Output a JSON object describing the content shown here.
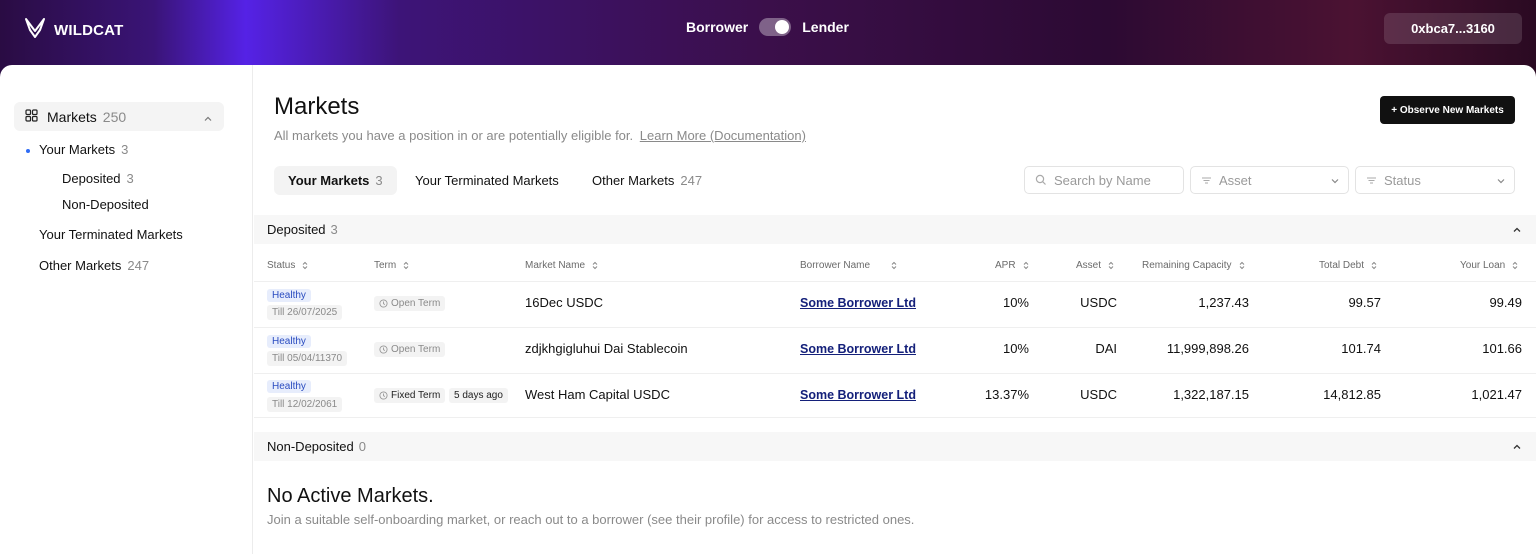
{
  "header": {
    "logo_text": "WILDCAT",
    "role_left": "Borrower",
    "role_right": "Lender",
    "wallet": "0xbca7...3160"
  },
  "sidebar": {
    "markets_label": "Markets",
    "markets_count": "250",
    "your_markets_label": "Your Markets",
    "your_markets_count": "3",
    "deposited_label": "Deposited",
    "deposited_count": "3",
    "non_deposited_label": "Non-Deposited",
    "terminated_label": "Your Terminated Markets",
    "other_label": "Other Markets",
    "other_count": "247"
  },
  "main": {
    "title": "Markets",
    "subtitle": "All markets you have a position in or are potentially eligible for.",
    "learn_more": "Learn More (Documentation)",
    "observe_button": "+ Observe New Markets",
    "tabs": [
      {
        "label": "Your Markets",
        "count": "3"
      },
      {
        "label": "Your Terminated Markets",
        "count": ""
      },
      {
        "label": "Other Markets",
        "count": "247"
      }
    ],
    "search_placeholder": "Search by Name",
    "asset_filter": "Asset",
    "status_filter": "Status"
  },
  "deposited": {
    "label": "Deposited",
    "count": "3",
    "columns": [
      "Status",
      "Term",
      "Market Name",
      "Borrower Name",
      "APR",
      "Asset",
      "Remaining Capacity",
      "Total Debt",
      "Your Loan"
    ],
    "rows": [
      {
        "status": "Healthy",
        "till": "Till 26/07/2025",
        "term": "Open Term",
        "term_extra": "",
        "market": "16Dec USDC",
        "borrower": "Some Borrower Ltd",
        "apr": "10%",
        "asset": "USDC",
        "capacity": "1,237.43",
        "debt": "99.57",
        "loan": "99.49"
      },
      {
        "status": "Healthy",
        "till": "Till 05/04/11370",
        "term": "Open Term",
        "term_extra": "",
        "market": "zdjkhgigluhui Dai Stablecoin",
        "borrower": "Some Borrower Ltd",
        "apr": "10%",
        "asset": "DAI",
        "capacity": "11,999,898.26",
        "debt": "101.74",
        "loan": "101.66"
      },
      {
        "status": "Healthy",
        "till": "Till 12/02/2061",
        "term": "Fixed Term",
        "term_extra": "5 days ago",
        "market": "West Ham Capital USDC",
        "borrower": "Some Borrower Ltd",
        "apr": "13.37%",
        "asset": "USDC",
        "capacity": "1,322,187.15",
        "debt": "14,812.85",
        "loan": "1,021.47"
      }
    ]
  },
  "non_deposited": {
    "label": "Non-Deposited",
    "count": "0",
    "empty_title": "No Active Markets.",
    "empty_sub": "Join a suitable self-onboarding market, or reach out to a borrower (see their profile) for access to restricted ones."
  }
}
